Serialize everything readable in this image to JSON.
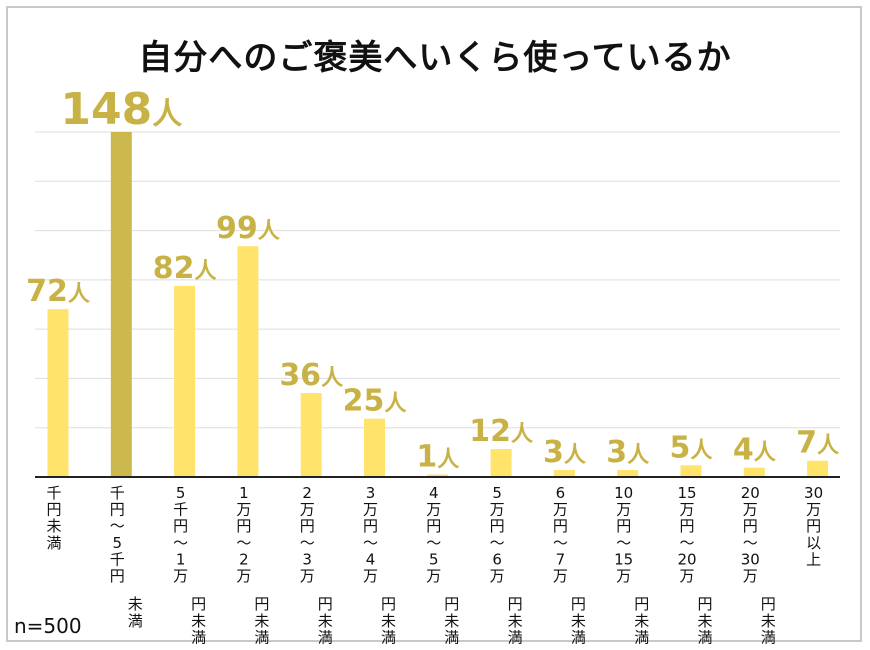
{
  "chart_data": {
    "type": "bar",
    "title": "自分へのご褒美へいくら使っているか",
    "unit": "人",
    "categories": [
      [
        "千",
        "円",
        "未",
        "満"
      ],
      [
        "千",
        "円",
        "～",
        "5",
        "千",
        "円",
        "未",
        "満"
      ],
      [
        "5",
        "千",
        "円",
        "～",
        "1",
        "万",
        "円",
        "未",
        "満"
      ],
      [
        "1",
        "万",
        "円",
        "～",
        "2",
        "万",
        "円",
        "未",
        "満"
      ],
      [
        "2",
        "万",
        "円",
        "～",
        "3",
        "万",
        "円",
        "未",
        "満"
      ],
      [
        "3",
        "万",
        "円",
        "～",
        "4",
        "万",
        "円",
        "未",
        "満"
      ],
      [
        "4",
        "万",
        "円",
        "～",
        "5",
        "万",
        "円",
        "未",
        "満"
      ],
      [
        "5",
        "万",
        "円",
        "～",
        "6",
        "万",
        "円",
        "未",
        "満"
      ],
      [
        "6",
        "万",
        "円",
        "～",
        "7",
        "万",
        "円",
        "未",
        "満"
      ],
      [
        "10",
        "万",
        "円",
        "～",
        "15",
        "万",
        "円",
        "未",
        "満"
      ],
      [
        "15",
        "万",
        "円",
        "～",
        "20",
        "万",
        "円",
        "未",
        "満"
      ],
      [
        "20",
        "万",
        "円",
        "～",
        "30",
        "万",
        "円",
        "未",
        "満"
      ],
      [
        "30",
        "万",
        "円",
        "以",
        "上"
      ]
    ],
    "values": [
      72,
      148,
      82,
      99,
      36,
      25,
      1,
      12,
      3,
      3,
      5,
      4,
      7
    ],
    "highlight_index": 1,
    "ylim": [
      0,
      148
    ],
    "grid": true,
    "colors": {
      "bar": "#ffe36b",
      "highlight": "#cdb84e",
      "label": "#c9b245",
      "grid": "#dddddd",
      "axis": "#222222"
    }
  },
  "sample_note": "n=500"
}
